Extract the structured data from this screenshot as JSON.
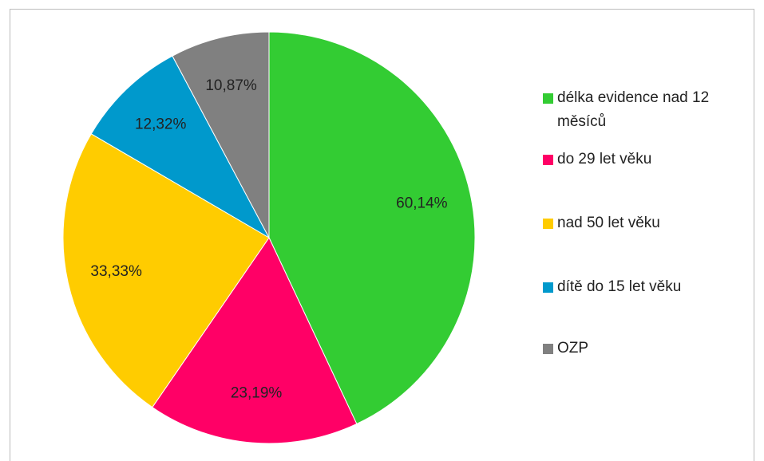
{
  "chart_data": {
    "type": "pie",
    "categories": [
      "délka evidence nad 12 měsíců",
      "do 29 let věku",
      "nad 50 let věku",
      "dítě do 15 let věku",
      "OZP"
    ],
    "values": [
      60.14,
      23.19,
      33.33,
      12.32,
      10.87
    ],
    "value_labels": [
      "60,14%",
      "23,19%",
      "33,33%",
      "12,32%",
      "10,87%"
    ],
    "colors": [
      "#33cc33",
      "#ff0066",
      "#ffcc00",
      "#0099cc",
      "#808080"
    ],
    "legend": "right"
  }
}
